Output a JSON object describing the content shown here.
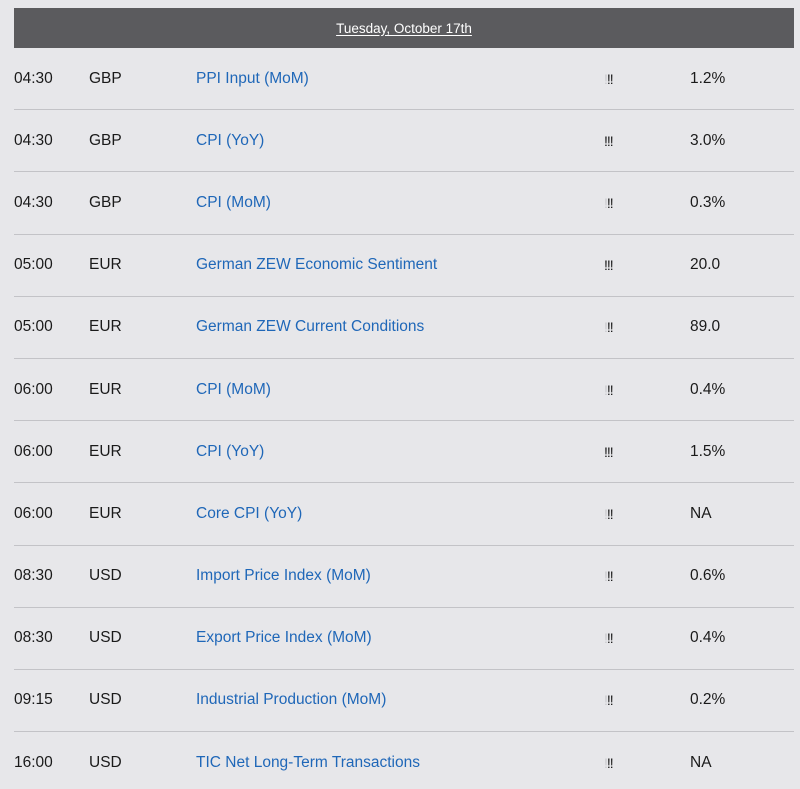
{
  "header": {
    "date": "Tuesday, October 17th"
  },
  "events": [
    {
      "time": "04:30",
      "currency": "GBP",
      "event": "PPI Input (MoM)",
      "importance_dim": "!",
      "importance_bold": "!!",
      "actual": "1.2%"
    },
    {
      "time": "04:30",
      "currency": "GBP",
      "event": "CPI (YoY)",
      "importance_dim": "",
      "importance_bold": "!!!",
      "actual": "3.0%"
    },
    {
      "time": "04:30",
      "currency": "GBP",
      "event": "CPI (MoM)",
      "importance_dim": "!",
      "importance_bold": "!!",
      "actual": "0.3%"
    },
    {
      "time": "05:00",
      "currency": "EUR",
      "event": "German ZEW Economic Sentiment",
      "importance_dim": "",
      "importance_bold": "!!!",
      "actual": "20.0"
    },
    {
      "time": "05:00",
      "currency": "EUR",
      "event": "German ZEW Current Conditions",
      "importance_dim": "!",
      "importance_bold": "!!",
      "actual": "89.0"
    },
    {
      "time": "06:00",
      "currency": "EUR",
      "event": "CPI (MoM)",
      "importance_dim": "!",
      "importance_bold": "!!",
      "actual": "0.4%"
    },
    {
      "time": "06:00",
      "currency": "EUR",
      "event": "CPI (YoY)",
      "importance_dim": "",
      "importance_bold": "!!!",
      "actual": "1.5%"
    },
    {
      "time": "06:00",
      "currency": "EUR",
      "event": "Core CPI (YoY)",
      "importance_dim": "!",
      "importance_bold": "!!",
      "actual": "NA"
    },
    {
      "time": "08:30",
      "currency": "USD",
      "event": "Import Price Index (MoM)",
      "importance_dim": "!",
      "importance_bold": "!!",
      "actual": "0.6%"
    },
    {
      "time": "08:30",
      "currency": "USD",
      "event": "Export Price Index (MoM)",
      "importance_dim": "!",
      "importance_bold": "!!",
      "actual": "0.4%"
    },
    {
      "time": "09:15",
      "currency": "USD",
      "event": "Industrial Production (MoM)",
      "importance_dim": "!",
      "importance_bold": "!!",
      "actual": "0.2%"
    },
    {
      "time": "16:00",
      "currency": "USD",
      "event": "TIC Net Long-Term Transactions",
      "importance_dim": "!",
      "importance_bold": "!!",
      "actual": "NA"
    }
  ],
  "colors": {
    "header_bg": "#5b5b5e",
    "page_bg": "#e7e7ea",
    "link": "#1f67b8",
    "divider": "#c3c3c7"
  }
}
